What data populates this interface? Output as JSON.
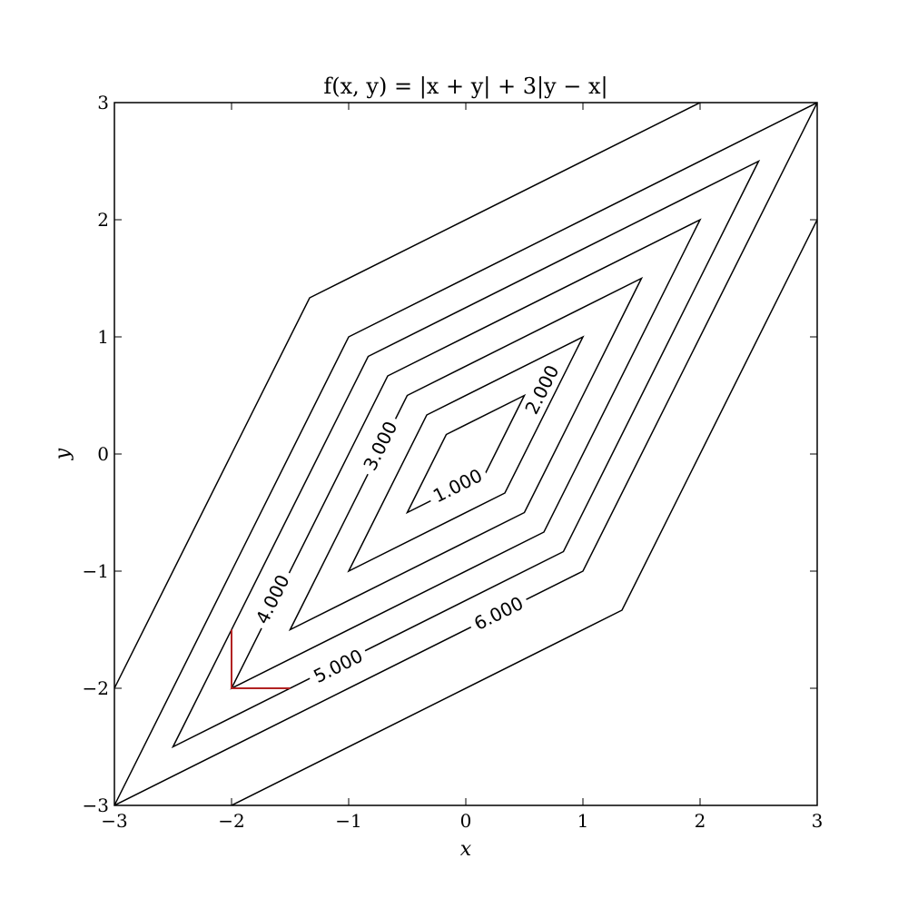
{
  "chart_data": {
    "type": "contour",
    "title": "f(x, y) = |x + y| + 3|y − x|",
    "xlabel": "x",
    "ylabel": "y",
    "xlim": [
      -3,
      3
    ],
    "ylim": [
      -3,
      3
    ],
    "xticks": [
      -3,
      -2,
      -1,
      0,
      1,
      2,
      3
    ],
    "yticks": [
      -3,
      -2,
      -1,
      0,
      1,
      2,
      3
    ],
    "xtick_labels": [
      "−3",
      "−2",
      "−1",
      "0",
      "1",
      "2",
      "3"
    ],
    "ytick_labels": [
      "−3",
      "−2",
      "−1",
      "0",
      "1",
      "2",
      "3"
    ],
    "grid": false,
    "line_color": "#000000",
    "levels": [
      1,
      2,
      3,
      4,
      5,
      6,
      8
    ],
    "level_labels": [
      {
        "level": 1,
        "text": "1.000",
        "x": -0.07,
        "y": -0.27
      },
      {
        "level": 2,
        "text": "2.000",
        "x": 0.65,
        "y": 0.55
      },
      {
        "level": 3,
        "text": "3.000",
        "x": -0.73,
        "y": 0.07
      },
      {
        "level": 4,
        "text": "4.000",
        "x": -1.65,
        "y": -1.24
      },
      {
        "level": 5,
        "text": "5.000",
        "x": -1.09,
        "y": -1.81
      },
      {
        "level": 6,
        "text": "6.000",
        "x": 0.28,
        "y": -1.36
      }
    ],
    "highlight": {
      "color": "#b22222",
      "points": [
        [
          -2,
          -1.5
        ],
        [
          -2,
          -2
        ],
        [
          -1.5,
          -2
        ]
      ]
    }
  }
}
